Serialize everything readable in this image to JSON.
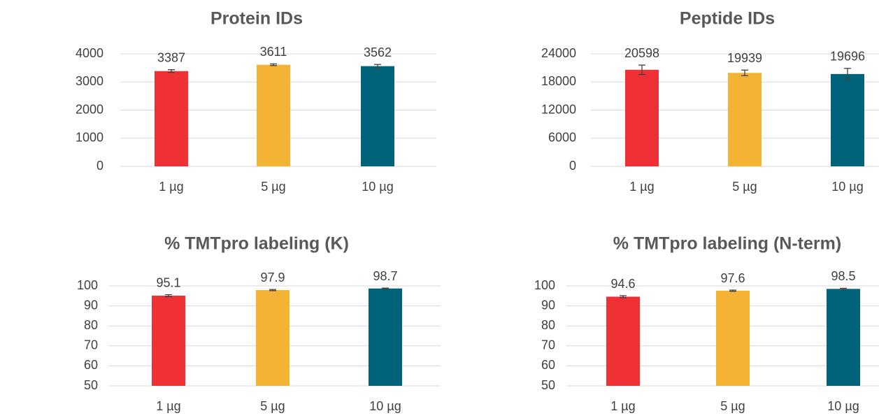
{
  "chart_data": [
    {
      "type": "bar",
      "title": "Protein IDs",
      "categories": [
        "1 µg",
        "5 µg",
        "10 µg"
      ],
      "values": [
        3387,
        3611,
        3562
      ],
      "errors": [
        50,
        30,
        60
      ],
      "colors": [
        "#ee3135",
        "#f5b335",
        "#00637a"
      ],
      "ylim": [
        0,
        4000
      ],
      "yticks": [
        0,
        1000,
        2000,
        3000,
        4000
      ],
      "grid": true
    },
    {
      "type": "bar",
      "title": "Peptide IDs",
      "categories": [
        "1 µg",
        "5 µg",
        "10 µg"
      ],
      "values": [
        20598,
        19939,
        19696
      ],
      "errors": [
        1000,
        600,
        1200
      ],
      "colors": [
        "#ee3135",
        "#f5b335",
        "#00637a"
      ],
      "ylim": [
        0,
        24000
      ],
      "yticks": [
        0,
        6000,
        12000,
        18000,
        24000
      ],
      "grid": true
    },
    {
      "type": "bar",
      "title": "% TMTpro labeling (K)",
      "categories": [
        "1 µg",
        "5 µg",
        "10 µg"
      ],
      "values": [
        95.1,
        97.9,
        98.7
      ],
      "errors": [
        0.5,
        0.3,
        0.2
      ],
      "colors": [
        "#ee3135",
        "#f5b335",
        "#00637a"
      ],
      "ylim": [
        50,
        100
      ],
      "yticks": [
        50,
        60,
        70,
        80,
        90,
        100
      ],
      "grid": true
    },
    {
      "type": "bar",
      "title": "% TMTpro labeling (N-term)",
      "categories": [
        "1 µg",
        "5 µg",
        "10 µg"
      ],
      "values": [
        94.6,
        97.6,
        98.5
      ],
      "errors": [
        0.5,
        0.3,
        0.3
      ],
      "colors": [
        "#ee3135",
        "#f5b335",
        "#00637a"
      ],
      "ylim": [
        50,
        100
      ],
      "yticks": [
        50,
        60,
        70,
        80,
        90,
        100
      ],
      "grid": true
    }
  ]
}
